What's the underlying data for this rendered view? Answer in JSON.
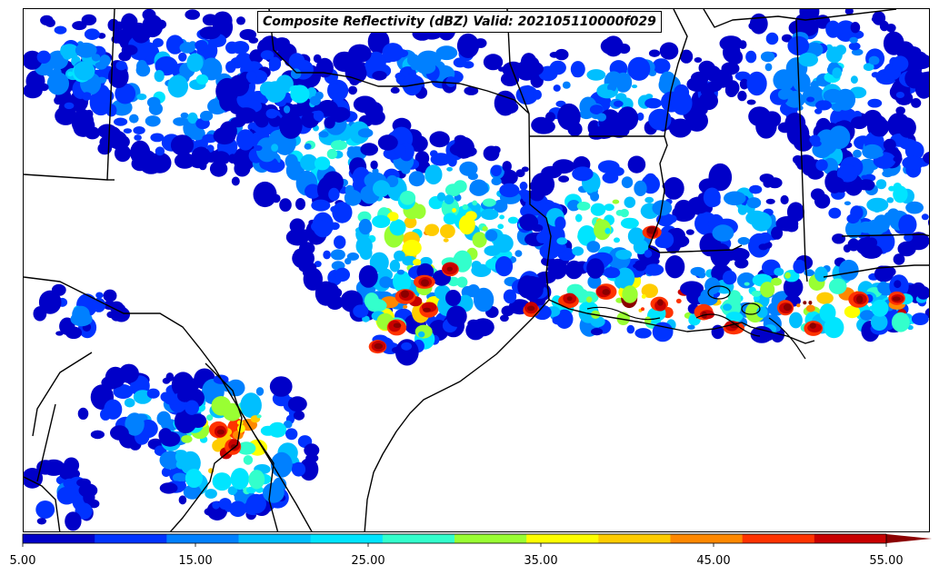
{
  "title": "Composite Reflectivity (dBZ) Valid: 202105110000f029",
  "colorbar": {
    "ticks": [
      "5.00",
      "15.00",
      "25.00",
      "35.00",
      "45.00",
      "55.00"
    ],
    "tick_values": [
      5,
      15,
      25,
      35,
      45,
      55
    ],
    "min": 5,
    "max": 55,
    "step": 5,
    "extend": "max",
    "colors": [
      "#0000c8",
      "#0033ff",
      "#0080ff",
      "#00bfff",
      "#00e5ff",
      "#33ffcc",
      "#99ff33",
      "#ffff00",
      "#ffcc00",
      "#ff8800",
      "#ff3300",
      "#c80000",
      "#8b0000"
    ]
  },
  "map": {
    "field": "Composite Reflectivity",
    "units": "dBZ"
  }
}
